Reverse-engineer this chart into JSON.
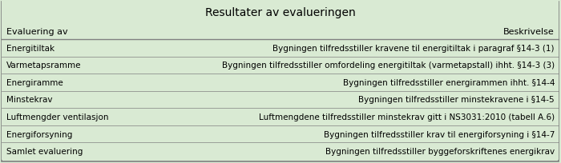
{
  "title": "Resultater av evalueringen",
  "header_left": "Evaluering av",
  "header_right": "Beskrivelse",
  "rows": [
    [
      "Energitiltak",
      "Bygningen tilfredsstiller kravene til energitiltak i paragraf §14-3 (1)"
    ],
    [
      "Varmetapsramme",
      "Bygningen tilfredsstiller omfordeling energitiltak (varmetapstall) ihht. §14-3 (3)"
    ],
    [
      "Energiramme",
      "Bygningen tilfredsstiller energirammen ihht. §14-4"
    ],
    [
      "Minstekrav",
      "Bygningen tilfredsstiller minstekravene i §14-5"
    ],
    [
      "Luftmengder ventilasjon",
      "Luftmengdene tilfredsstiller minstekrav gitt i NS3031:2010 (tabell A.6)"
    ],
    [
      "Energiforsyning",
      "Bygningen tilfredsstiller krav til energiforsyning i §14-7"
    ],
    [
      "Samlet evaluering",
      "Bygningen tilfredsstiller byggeforskriftenes energikrav"
    ]
  ],
  "bg_color_light": "#d9ead3",
  "bg_color_header": "#d9ead3",
  "bg_color_white": "#ffffff",
  "border_color": "#808080",
  "title_fontsize": 10,
  "body_fontsize": 7.5,
  "header_fontsize": 8
}
